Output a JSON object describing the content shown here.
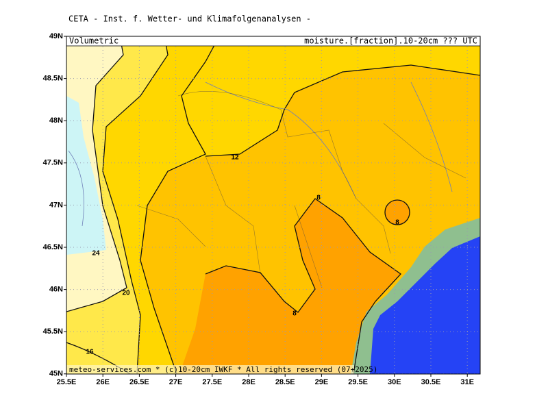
{
  "header": {
    "title": "CETA - Inst. f. Wetter- und Klimafolgenanalysen -",
    "left_label": "Volumetric",
    "right_label": "moisture.[fraction].10-20cm ??? UTC"
  },
  "lat_ticks": [
    {
      "value": 49,
      "label": "49N"
    },
    {
      "value": 48.5,
      "label": "48.5N"
    },
    {
      "value": 48,
      "label": "48N"
    },
    {
      "value": 47.5,
      "label": "47.5N"
    },
    {
      "value": 47,
      "label": "47N"
    },
    {
      "value": 46.5,
      "label": "46.5N"
    },
    {
      "value": 46,
      "label": "46N"
    },
    {
      "value": 45.5,
      "label": "45.5N"
    },
    {
      "value": 45,
      "label": "45N"
    }
  ],
  "lon_ticks": [
    {
      "value": 25.5,
      "label": "25.5E"
    },
    {
      "value": 26,
      "label": "26E"
    },
    {
      "value": 26.5,
      "label": "26.5E"
    },
    {
      "value": 27,
      "label": "27E"
    },
    {
      "value": 27.5,
      "label": "27.5E"
    },
    {
      "value": 28,
      "label": "28E"
    },
    {
      "value": 28.5,
      "label": "28.5E"
    },
    {
      "value": 29,
      "label": "29E"
    },
    {
      "value": 29.5,
      "label": "29.5E"
    },
    {
      "value": 30,
      "label": "30E"
    },
    {
      "value": 30.5,
      "label": "30.5E"
    },
    {
      "value": 31,
      "label": "31E"
    }
  ],
  "contour_labels": [
    "12",
    "8",
    "8",
    "8",
    "24",
    "20",
    "16"
  ],
  "footer": "meteo-services.com * (c)10-20cm IWKF * All rights reserved (07+2025)"
}
